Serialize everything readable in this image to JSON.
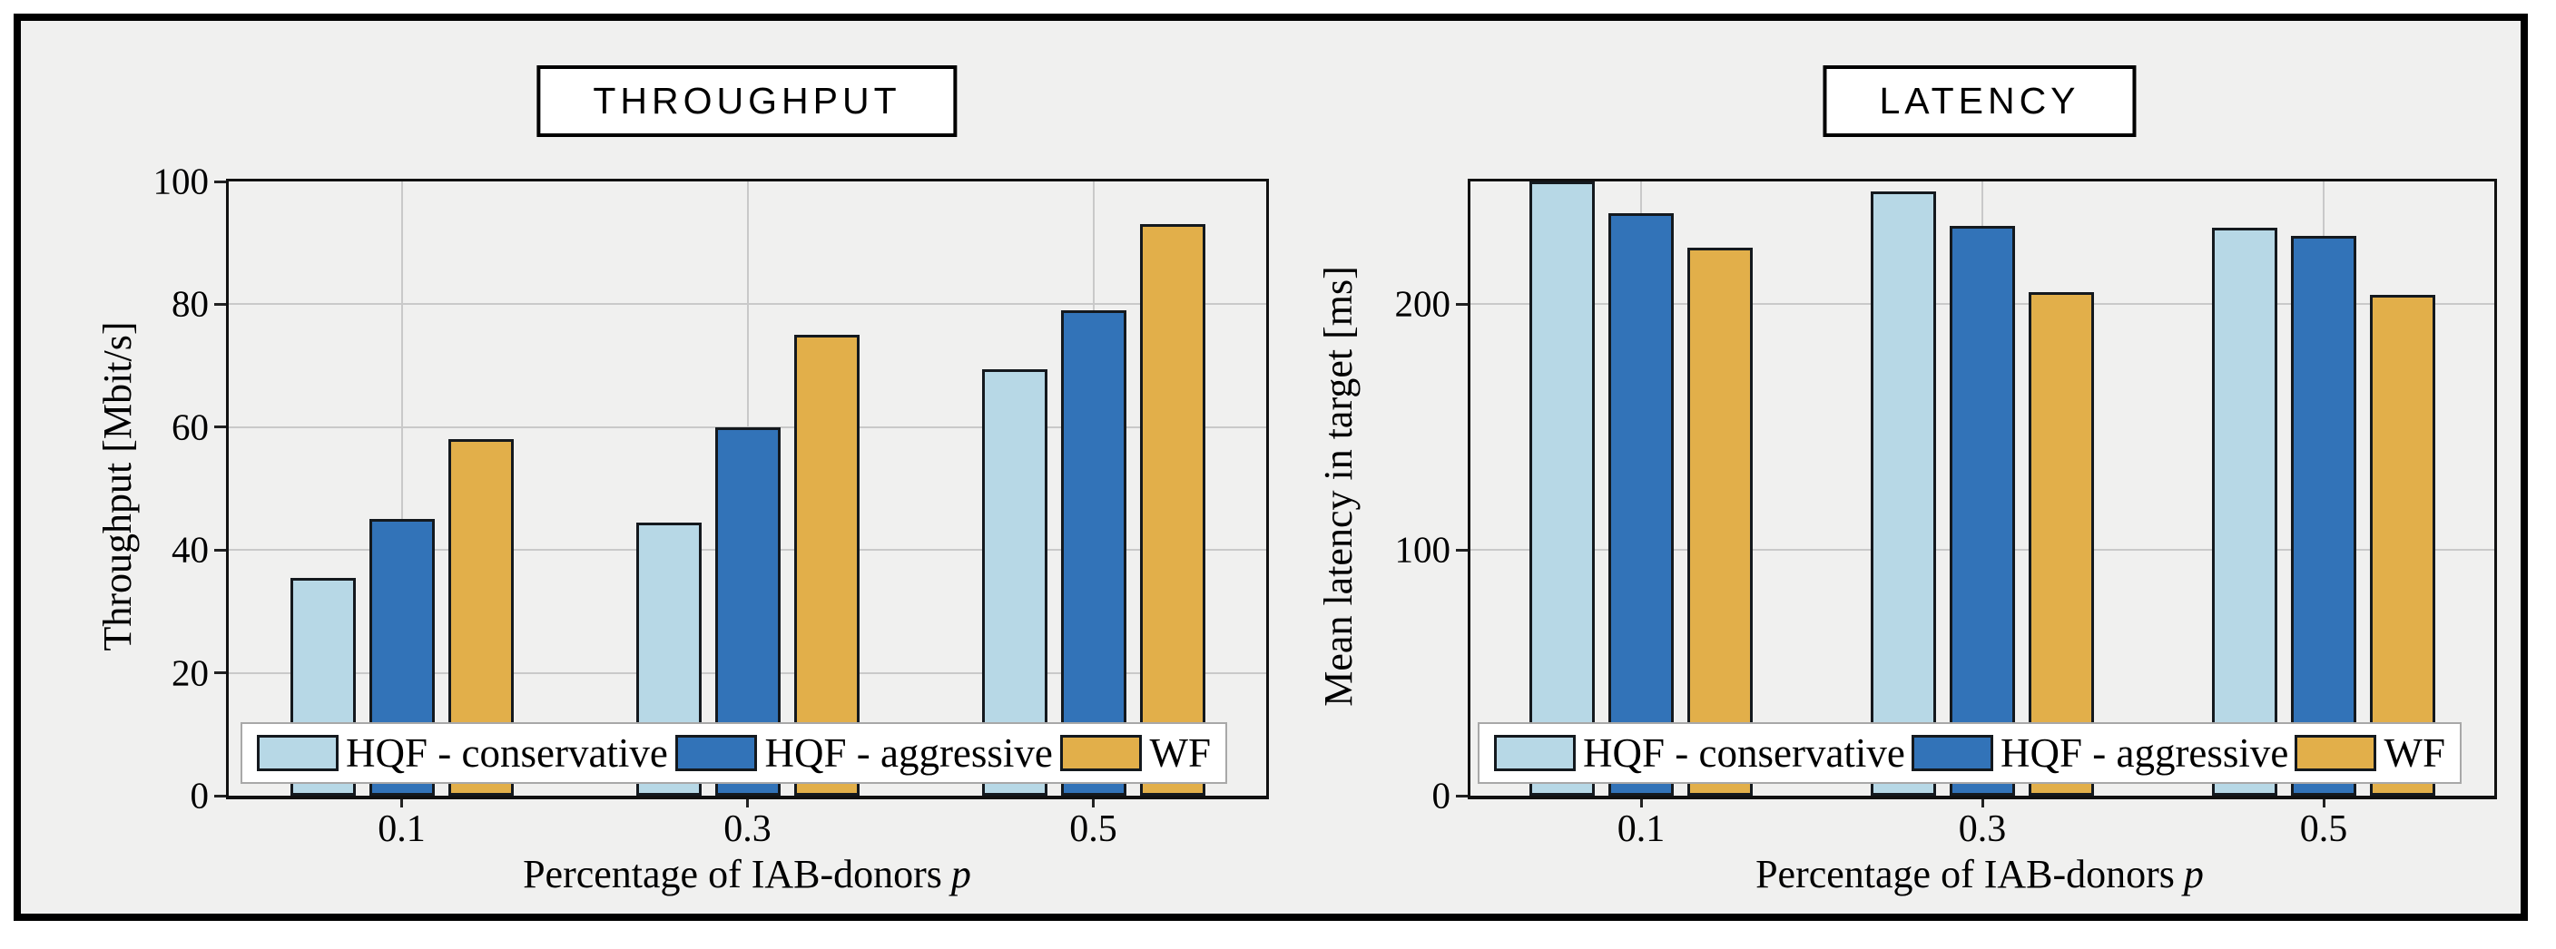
{
  "figure": {
    "background_color": "#f0f0ef",
    "frame_color": "#000000",
    "grid_color": "#c9c9c9"
  },
  "chart_data": [
    {
      "type": "bar",
      "title": "THROUGHPUT",
      "ylabel": "Throughput [Mbit/s]",
      "xlabel": "Percentage of IAB-donors",
      "xlabel_var": "p",
      "categories": [
        "0.1",
        "0.3",
        "0.5"
      ],
      "yticks": [
        0,
        20,
        40,
        60,
        80,
        100
      ],
      "ylim": [
        0,
        100
      ],
      "grid": true,
      "legend_position": "bottom-inside",
      "series": [
        {
          "name": "HQF - conservative",
          "color": "#b7d8e6",
          "values": [
            35.5,
            44.5,
            69.5
          ]
        },
        {
          "name": "HQF - aggressive",
          "color": "#3273b8",
          "values": [
            45,
            60,
            79
          ]
        },
        {
          "name": "WF",
          "color": "#e2af4a",
          "values": [
            58,
            75,
            93
          ]
        }
      ]
    },
    {
      "type": "bar",
      "title": "LATENCY",
      "ylabel": "Mean latency in target [ms]",
      "xlabel": "Percentage of IAB-donors",
      "xlabel_var": "p",
      "categories": [
        "0.1",
        "0.3",
        "0.5"
      ],
      "yticks": [
        0,
        100,
        200
      ],
      "ylim": [
        0,
        250
      ],
      "grid": true,
      "legend_position": "bottom-inside",
      "series": [
        {
          "name": "HQF - conservative",
          "color": "#b7d8e6",
          "values": [
            250,
            246,
            231
          ]
        },
        {
          "name": "HQF - aggressive",
          "color": "#3273b8",
          "values": [
            237,
            232,
            228
          ]
        },
        {
          "name": "WF",
          "color": "#e2af4a",
          "values": [
            223,
            205,
            204
          ]
        }
      ]
    }
  ]
}
